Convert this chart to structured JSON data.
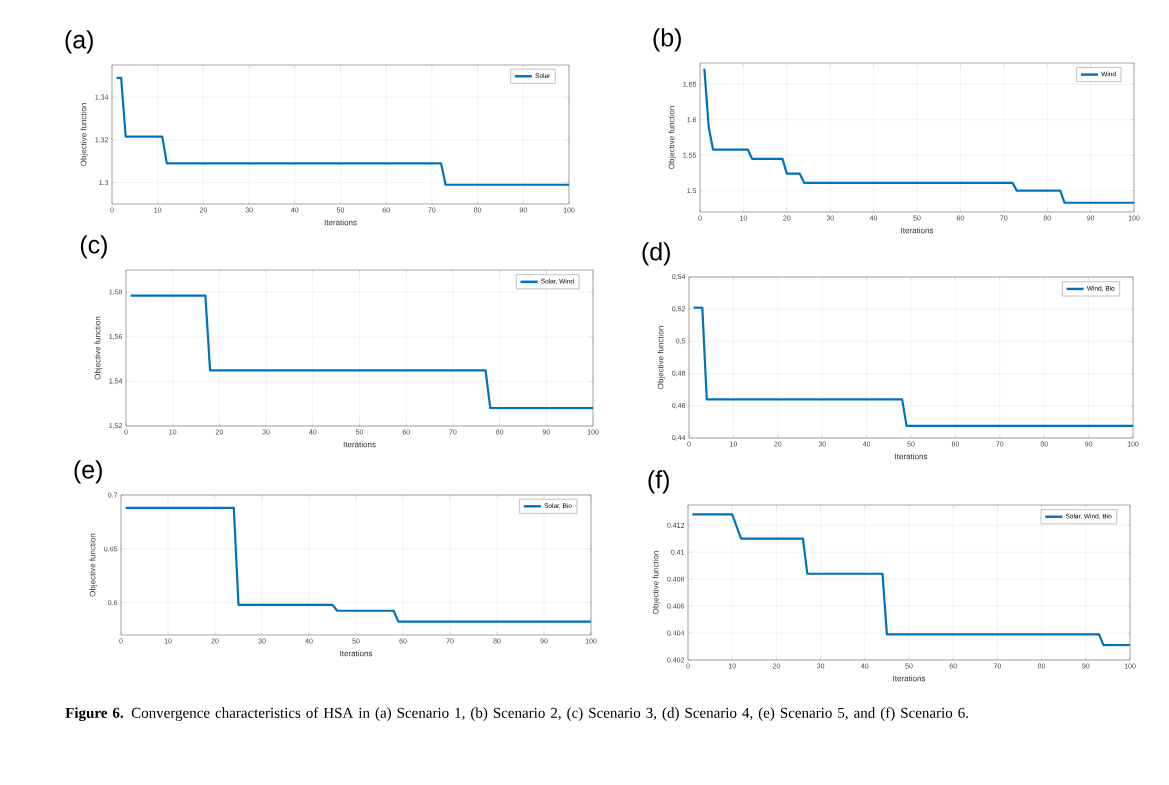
{
  "chart_data": [
    {
      "type": "step",
      "title": "(a)",
      "xlabel": "Iterations",
      "ylabel": "Objective function",
      "x": [
        1,
        2,
        3,
        11,
        12,
        72,
        73,
        100
      ],
      "series": [
        {
          "name": "Solar",
          "color": "#0072bd",
          "values": [
            1.349,
            1.349,
            1.3215,
            1.3215,
            1.309,
            1.309,
            1.299,
            1.299
          ]
        }
      ],
      "xlim": [
        0,
        100
      ],
      "ylim": [
        1.29,
        1.355
      ],
      "xticks": [
        0,
        10,
        20,
        30,
        40,
        50,
        60,
        70,
        80,
        90,
        100
      ],
      "yticks": [
        1.3,
        1.32,
        1.34
      ],
      "grid": true,
      "legend": "top right"
    },
    {
      "type": "step",
      "title": "(b)",
      "xlabel": "Iterations",
      "ylabel": "Objective function",
      "x": [
        1,
        2,
        3,
        11,
        12,
        19,
        20,
        23,
        24,
        72,
        73,
        83,
        84,
        100
      ],
      "series": [
        {
          "name": "Wind",
          "color": "#0072bd",
          "values": [
            1.672,
            1.59,
            1.558,
            1.558,
            1.545,
            1.545,
            1.524,
            1.524,
            1.511,
            1.511,
            1.5,
            1.5,
            1.483,
            1.483
          ]
        }
      ],
      "xlim": [
        0,
        100
      ],
      "ylim": [
        1.47,
        1.68
      ],
      "xticks": [
        0,
        10,
        20,
        30,
        40,
        50,
        60,
        70,
        80,
        90,
        100
      ],
      "yticks": [
        1.5,
        1.55,
        1.6,
        1.65
      ],
      "grid": true,
      "legend": "top right"
    },
    {
      "type": "step",
      "title": "(c)",
      "xlabel": "Iterations",
      "ylabel": "Objective function",
      "x": [
        1,
        17,
        18,
        77,
        78,
        100
      ],
      "series": [
        {
          "name": "Solar, Wind",
          "color": "#0072bd",
          "values": [
            1.5785,
            1.5785,
            1.545,
            1.545,
            1.528,
            1.528
          ]
        }
      ],
      "xlim": [
        0,
        100
      ],
      "ylim": [
        1.52,
        1.59
      ],
      "xticks": [
        0,
        10,
        20,
        30,
        40,
        50,
        60,
        70,
        80,
        90,
        100
      ],
      "yticks": [
        {
          "value": 1.52,
          "label": "1,52"
        },
        {
          "value": 1.54,
          "label": "1,54"
        },
        {
          "value": 1.56,
          "label": "1,56"
        },
        {
          "value": 1.58,
          "label": "1,58"
        }
      ],
      "grid": true,
      "legend": "top right"
    },
    {
      "type": "step",
      "title": "(d)",
      "xlabel": "Iterations",
      "ylabel": "Objective function",
      "x": [
        1,
        3,
        4,
        48,
        49,
        100
      ],
      "series": [
        {
          "name": "Wind, Bio",
          "color": "#0072bd",
          "values": [
            0.521,
            0.521,
            0.464,
            0.464,
            0.4475,
            0.4475
          ]
        }
      ],
      "xlim": [
        0,
        100
      ],
      "ylim": [
        0.44,
        0.54
      ],
      "xticks": [
        0,
        10,
        20,
        30,
        40,
        50,
        60,
        70,
        80,
        90,
        100
      ],
      "yticks": [
        {
          "value": 0.44,
          "label": "0,44"
        },
        {
          "value": 0.46,
          "label": "0,46"
        },
        {
          "value": 0.48,
          "label": "0,48"
        },
        {
          "value": 0.5,
          "label": "0,5"
        },
        {
          "value": 0.52,
          "label": "0,52"
        },
        {
          "value": 0.54,
          "label": "0,54"
        }
      ],
      "grid": true,
      "legend": "top right"
    },
    {
      "type": "step",
      "title": "(e)",
      "xlabel": "Iterations",
      "ylabel": "Objective function",
      "x": [
        1,
        24,
        25,
        45,
        46,
        58,
        59,
        100
      ],
      "series": [
        {
          "name": "Solar, Bio",
          "color": "#0072bd",
          "values": [
            0.688,
            0.688,
            0.598,
            0.598,
            0.5925,
            0.5925,
            0.5825,
            0.5825
          ]
        }
      ],
      "xlim": [
        0,
        100
      ],
      "ylim": [
        0.57,
        0.7
      ],
      "xticks": [
        0,
        10,
        20,
        30,
        40,
        50,
        60,
        70,
        80,
        90,
        100
      ],
      "yticks": [
        0.6,
        0.65,
        0.7
      ],
      "grid": true,
      "legend": "top right"
    },
    {
      "type": "step",
      "title": "(f)",
      "xlabel": "Iterations",
      "ylabel": "Objective function",
      "x": [
        1,
        10,
        12,
        26,
        27,
        44,
        45,
        93,
        94,
        100
      ],
      "series": [
        {
          "name": "Solar, Wind, Bio",
          "color": "#0072bd",
          "values": [
            0.4128,
            0.4128,
            0.411,
            0.411,
            0.4084,
            0.4084,
            0.4039,
            0.4039,
            0.4031,
            0.4031
          ]
        }
      ],
      "xlim": [
        0,
        100
      ],
      "ylim": [
        0.402,
        0.4135
      ],
      "xticks": [
        0,
        10,
        20,
        30,
        40,
        50,
        60,
        70,
        80,
        90,
        100
      ],
      "yticks": [
        0.402,
        0.404,
        0.406,
        0.408,
        0.41,
        0.412
      ],
      "grid": true,
      "legend": "top right",
      "annotations": [
        "**Figure 6.** Convergence characteristics of HSA in (a) Scenario 1, (b) Scenario 2, (c) Scenario 3, (d) Scenario 4, (e) Scenario 5, and (f) Scenario 6."
      ]
    }
  ]
}
